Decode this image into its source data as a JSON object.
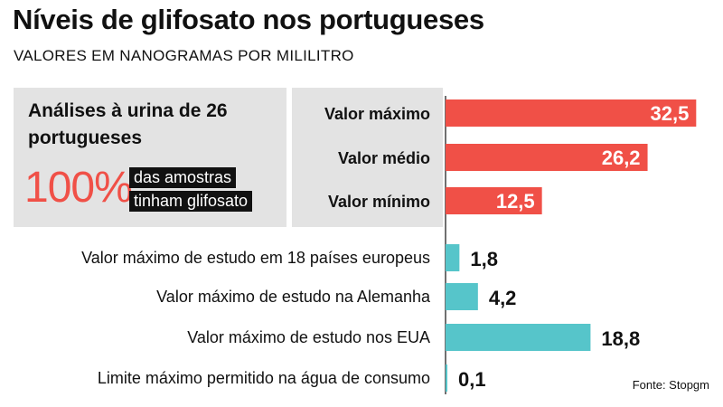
{
  "title": "Níveis de glifosato nos portugueses",
  "subtitle": "VALORES EM NANOGRAMAS POR MILILITRO",
  "study": {
    "title": "Análises à urina de 26 portugueses",
    "percent": "100%",
    "text_line1": "das amostras",
    "text_line2": "tinham glifosato"
  },
  "source": "Fonte: Stopgm",
  "colors": {
    "portugal": "#f05047",
    "reference": "#56c5ca",
    "panel": "#e3e3e3"
  },
  "chart_data": {
    "type": "bar",
    "orientation": "horizontal",
    "xlim": [
      0,
      33
    ],
    "series": [
      {
        "group": "portugal",
        "categories": [
          "Valor máximo",
          "Valor médio",
          "Valor mínimo"
        ],
        "values": [
          32.5,
          26.2,
          12.5
        ],
        "labels": [
          "32,5",
          "26,2",
          "12,5"
        ]
      },
      {
        "group": "reference",
        "categories": [
          "Valor máximo de estudo em 18 países europeus",
          "Valor máximo de estudo na Alemanha",
          "Valor máximo de estudo nos EUA",
          "Limite máximo permitido na água de consumo"
        ],
        "values": [
          1.8,
          4.2,
          18.8,
          0.1
        ],
        "labels": [
          "1,8",
          "4,2",
          "18,8",
          "0,1"
        ]
      }
    ]
  }
}
